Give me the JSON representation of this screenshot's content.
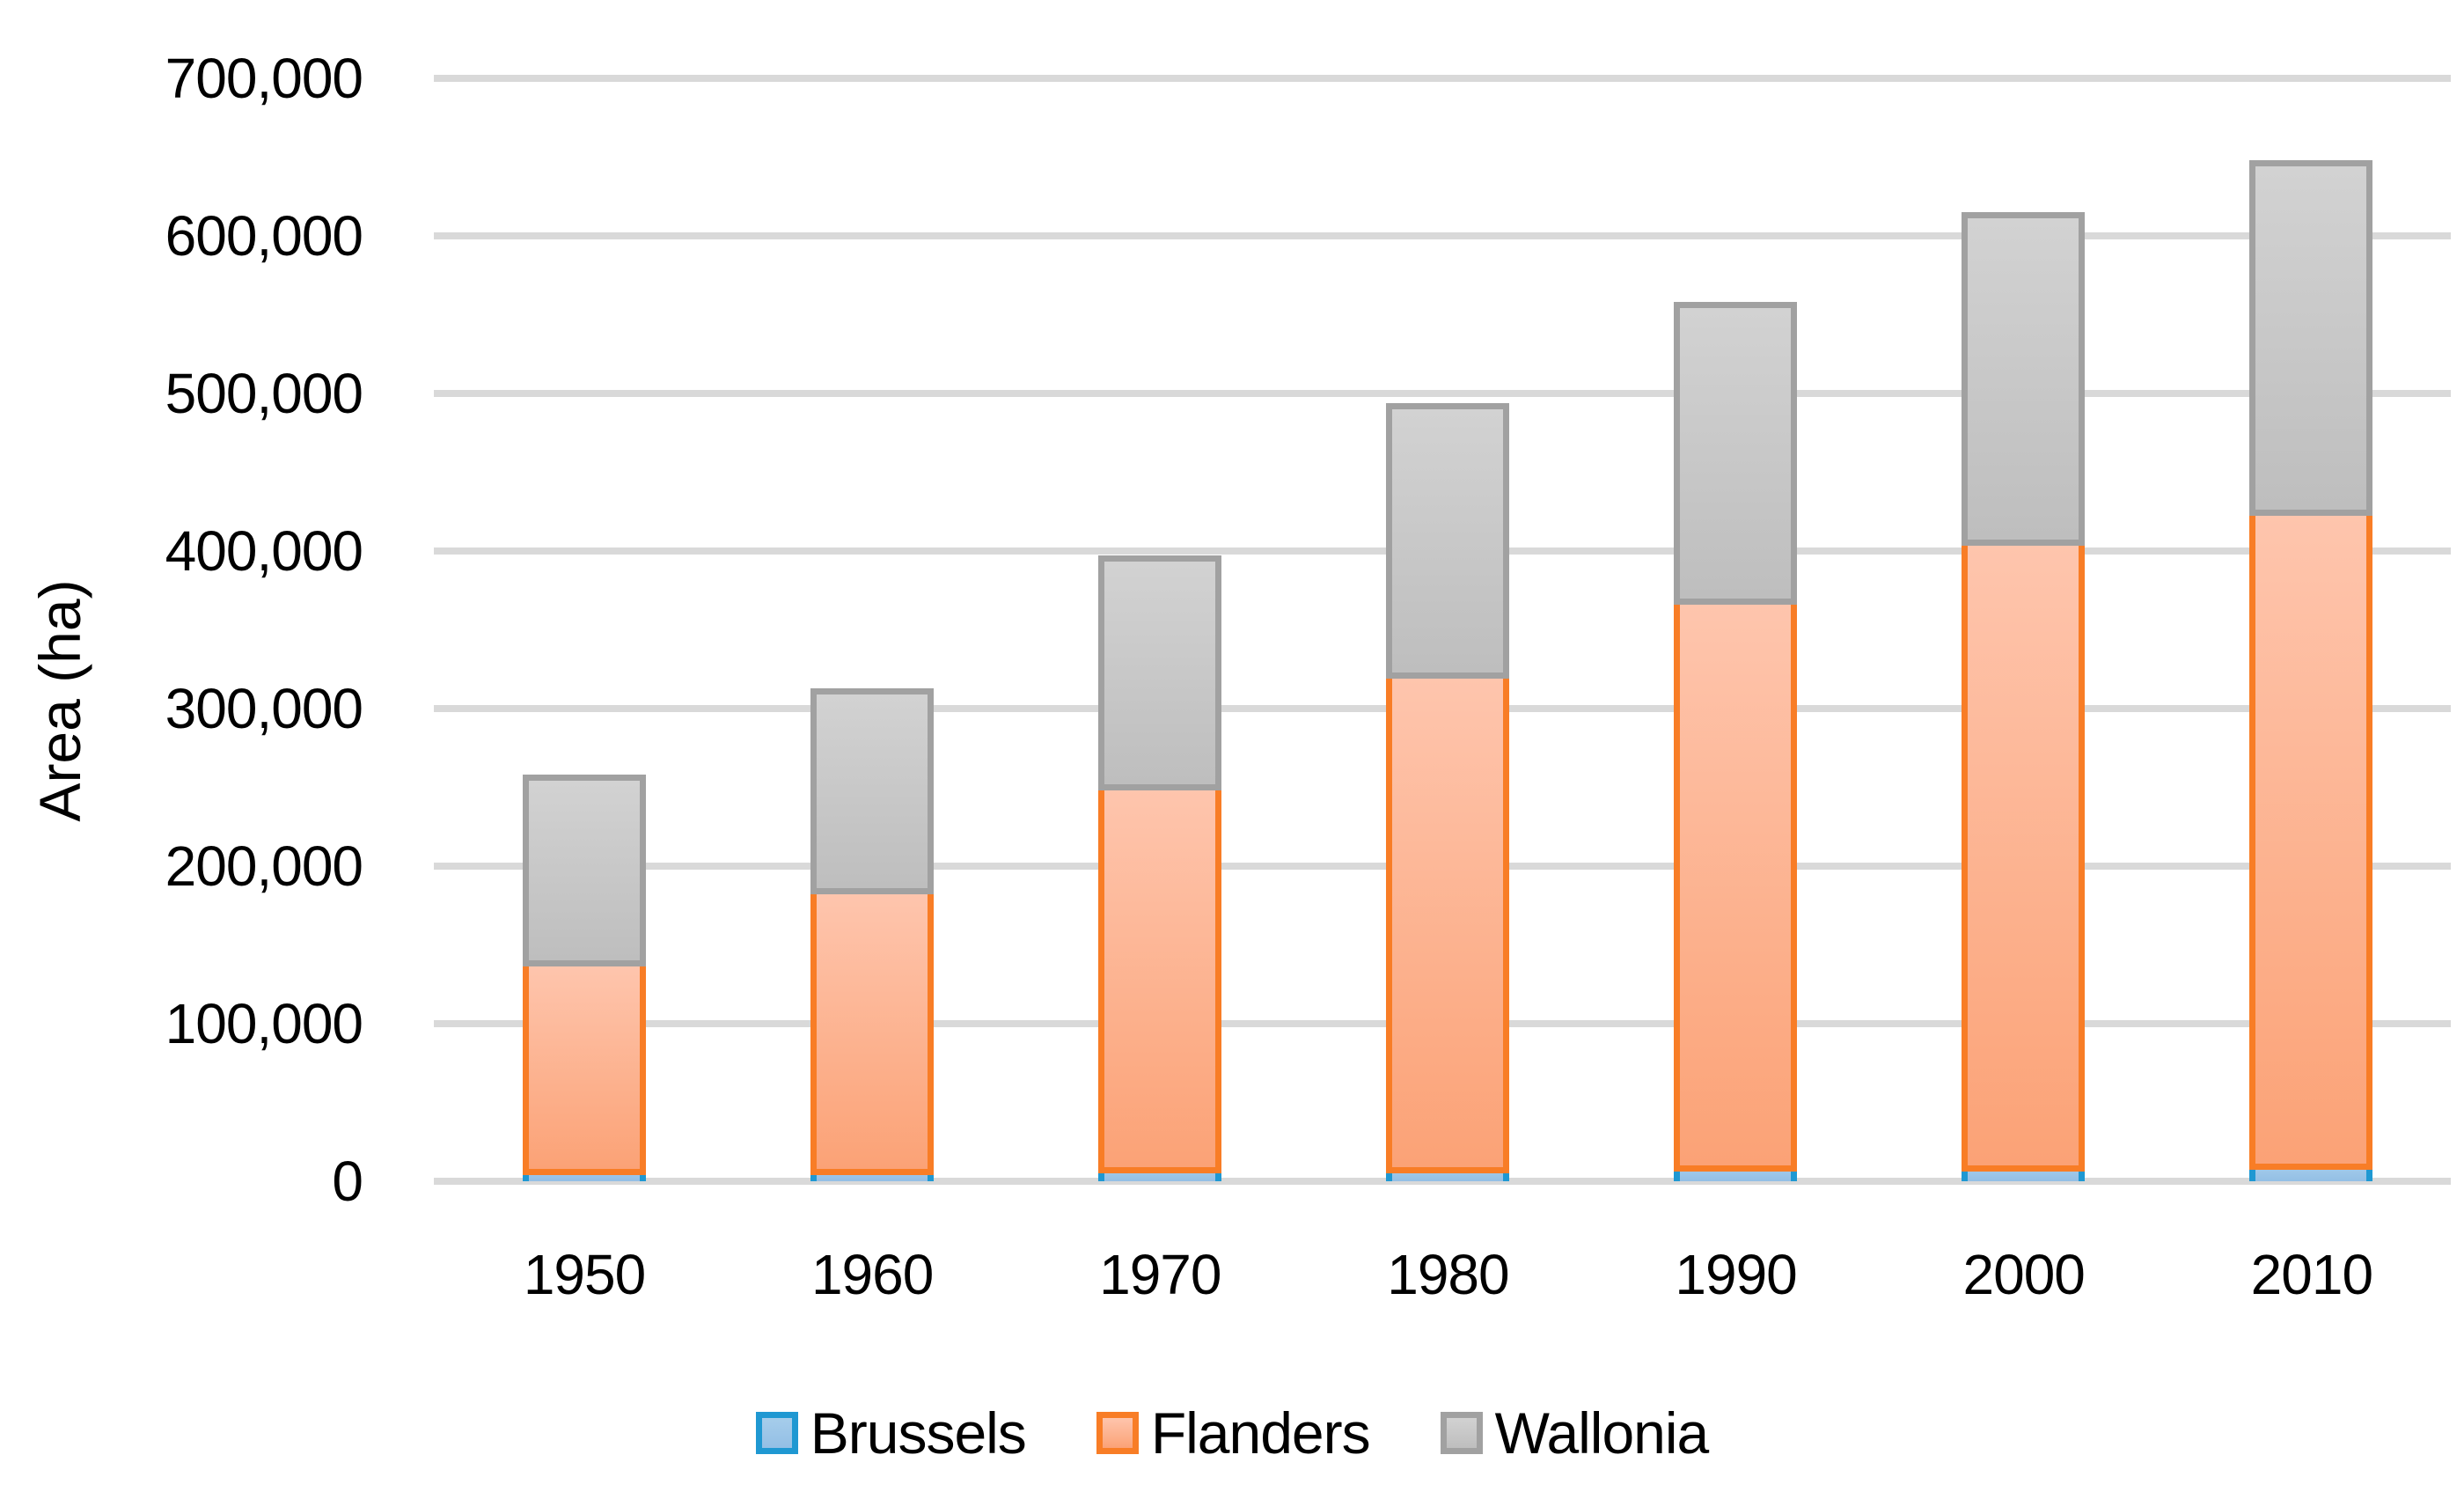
{
  "page": {
    "background": "#FFFFFF"
  },
  "colors": {
    "gridline": "#D9D9D9",
    "axis_line": "#D9D9D9",
    "text": "#000000"
  },
  "y_axis": {
    "title": "Area (ha)",
    "tick_labels": [
      "0",
      "100,000",
      "200,000",
      "300,000",
      "400,000",
      "500,000",
      "600,000",
      "700,000"
    ]
  },
  "chart_data": {
    "type": "bar",
    "stacked": true,
    "title": "",
    "xlabel": "",
    "ylabel": "Area (ha)",
    "ylim": [
      0,
      700000
    ],
    "ytick_step": 100000,
    "grid": true,
    "legend_position": "bottom",
    "categories": [
      "1950",
      "1960",
      "1970",
      "1980",
      "1990",
      "2000",
      "2010"
    ],
    "series": [
      {
        "name": "Brussels",
        "values": [
          8000,
          8000,
          9000,
          9000,
          10000,
          10000,
          11000
        ],
        "border_color": "#1F98D2",
        "fill_top": "#A6CDEB",
        "fill_bottom": "#93BFE5"
      },
      {
        "name": "Flanders",
        "values": [
          132000,
          178000,
          243000,
          314000,
          360000,
          397000,
          415000
        ],
        "border_color": "#F87D26",
        "fill_top": "#FEC5AD",
        "fill_bottom": "#FBA276"
      },
      {
        "name": "Wallonia",
        "values": [
          118000,
          127000,
          145000,
          171000,
          188000,
          208000,
          222000
        ],
        "border_color": "#A1A1A1",
        "fill_top": "#D2D2D2",
        "fill_bottom": "#BEBEBE"
      }
    ]
  }
}
